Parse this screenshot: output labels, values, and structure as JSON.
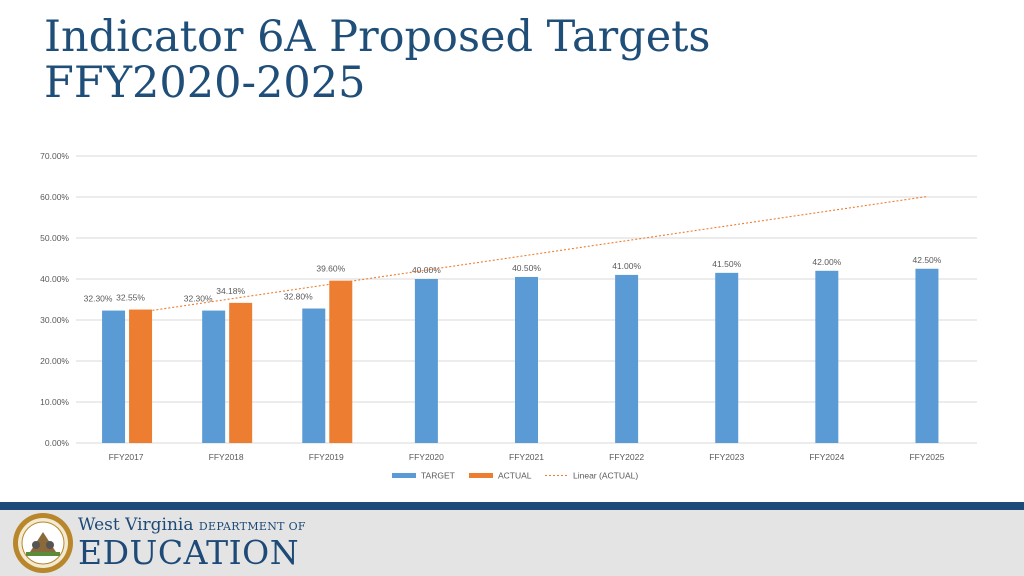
{
  "title_line1": "Indicator 6A Proposed Targets",
  "title_line2": "FFY2020-2025",
  "chart_data": {
    "type": "bar",
    "categories": [
      "FFY2017",
      "FFY2018",
      "FFY2019",
      "FFY2020",
      "FFY2021",
      "FFY2022",
      "FFY2023",
      "FFY2024",
      "FFY2025"
    ],
    "series": [
      {
        "name": "TARGET",
        "values": [
          32.3,
          32.3,
          32.8,
          40.0,
          40.5,
          41.0,
          41.5,
          42.0,
          42.5
        ],
        "labels": [
          "32.30%",
          "32.30%",
          "32.80%",
          "40.00%",
          "40.50%",
          "41.00%",
          "41.50%",
          "42.00%",
          "42.50%"
        ],
        "color": "#5b9bd5"
      },
      {
        "name": "ACTUAL",
        "values": [
          32.55,
          34.18,
          39.6,
          null,
          null,
          null,
          null,
          null,
          null
        ],
        "labels": [
          "32.55%",
          "34.18%",
          "39.60%",
          "",
          "",
          "",
          "",
          "",
          ""
        ],
        "color": "#ed7d31"
      }
    ],
    "trendline": {
      "name": "Linear (ACTUAL)",
      "of_series": "ACTUAL",
      "type": "linear",
      "color": "#ed7d31",
      "style": "dotted"
    },
    "yticks": [
      "0.00%",
      "10.00%",
      "20.00%",
      "30.00%",
      "40.00%",
      "50.00%",
      "60.00%",
      "70.00%"
    ],
    "ylim": [
      0,
      70
    ],
    "grid": true,
    "legend_position": "bottom"
  },
  "footer": {
    "brand_state": "West Virginia",
    "brand_dept": "DEPARTMENT OF",
    "brand_education": "EDUCATION"
  },
  "colors": {
    "title": "#1f4e79",
    "band": "#1d4a77",
    "footer_bg": "#e4e4e4"
  }
}
